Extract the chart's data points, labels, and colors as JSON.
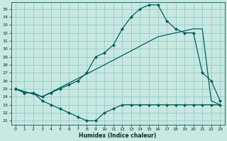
{
  "xlabel": "Humidex (Indice chaleur)",
  "xlim": [
    -0.5,
    23.5
  ],
  "ylim": [
    20.5,
    35.8
  ],
  "yticks": [
    21,
    22,
    23,
    24,
    25,
    26,
    27,
    28,
    29,
    30,
    31,
    32,
    33,
    34,
    35
  ],
  "xticks": [
    0,
    1,
    2,
    3,
    4,
    5,
    6,
    7,
    8,
    9,
    10,
    11,
    12,
    13,
    14,
    15,
    16,
    17,
    18,
    19,
    20,
    21,
    22,
    23
  ],
  "bg_color": "#c8e8e0",
  "line_color": "#006060",
  "line1_x": [
    0,
    1,
    2,
    3,
    4,
    5,
    6,
    7,
    8,
    9,
    10,
    11,
    12,
    13,
    14,
    15,
    16,
    17,
    18,
    19,
    20,
    21,
    22,
    23
  ],
  "line1_y": [
    25.0,
    24.5,
    24.5,
    24.0,
    24.5,
    25.0,
    25.5,
    26.0,
    27.0,
    29.0,
    29.5,
    30.5,
    32.5,
    34.0,
    35.0,
    35.5,
    35.5,
    33.5,
    32.5,
    32.0,
    32.0,
    27.0,
    26.0,
    23.5
  ],
  "line2_x": [
    0,
    3,
    10,
    16,
    20,
    21,
    22,
    23
  ],
  "line2_y": [
    25.0,
    24.0,
    28.0,
    31.5,
    32.5,
    32.5,
    23.5,
    23.0
  ],
  "line3_x": [
    0,
    1,
    2,
    3,
    4,
    5,
    6,
    7,
    8,
    9,
    10,
    11,
    12,
    13,
    14,
    15,
    16,
    17,
    18,
    19,
    20,
    21,
    22,
    23
  ],
  "line3_y": [
    25.0,
    24.5,
    24.5,
    23.5,
    23.0,
    22.5,
    22.0,
    21.5,
    21.0,
    21.0,
    22.0,
    22.5,
    23.0,
    23.0,
    23.0,
    23.0,
    23.0,
    23.0,
    23.0,
    23.0,
    23.0,
    23.0,
    23.0,
    23.0
  ]
}
